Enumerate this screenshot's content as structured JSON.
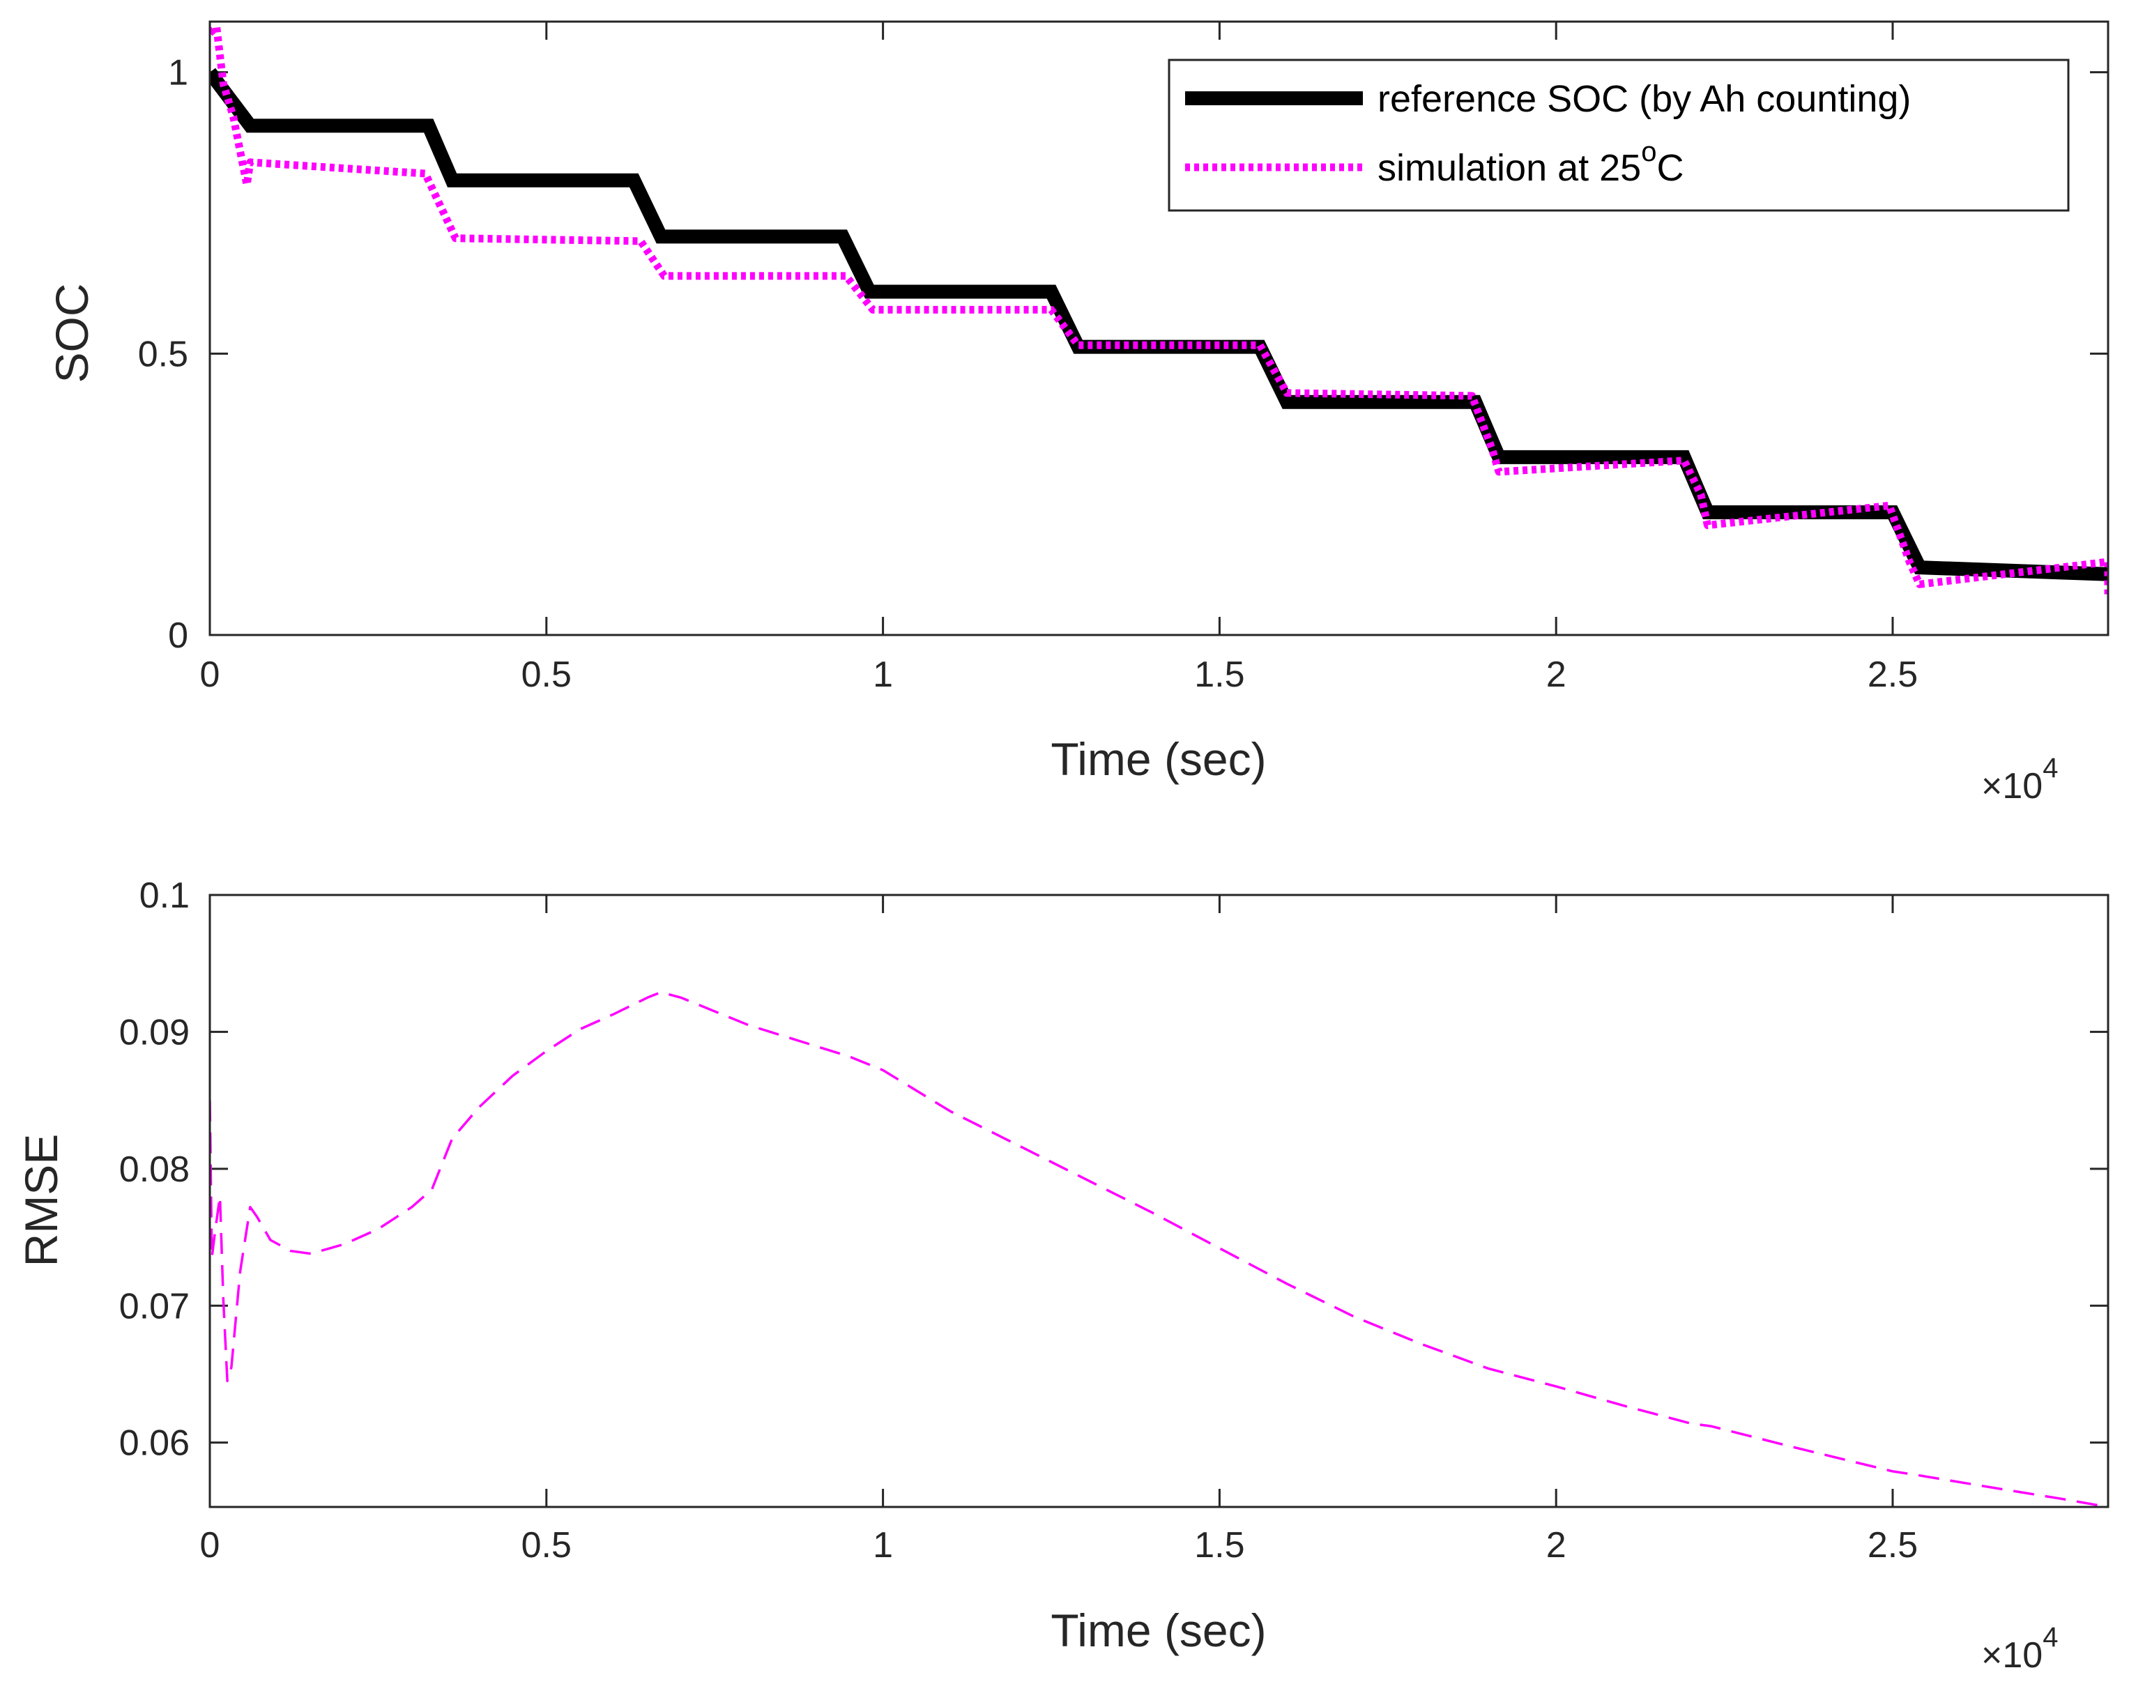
{
  "chart_data": [
    {
      "type": "line",
      "xlabel": "Time (sec)",
      "ylabel": "SOC",
      "xlim": [
        0,
        28200
      ],
      "ylim": [
        0,
        1.09
      ],
      "x_ticks": [
        0,
        5000,
        10000,
        15000,
        20000,
        25000
      ],
      "x_tick_labels": [
        "0",
        "0.5",
        "1",
        "1.5",
        "2",
        "2.5"
      ],
      "y_ticks": [
        0,
        0.5,
        1
      ],
      "y_tick_labels": [
        "0",
        "0.5",
        "1"
      ],
      "x_multiplier": {
        "base": "×10",
        "exponent": "4"
      },
      "legend": {
        "location": "top-right",
        "entries": [
          {
            "prefix": "reference SOC (by Ah counting)",
            "sup": "",
            "suffix": ""
          },
          {
            "prefix": "simulation at 25",
            "sup": "o",
            "suffix": "C"
          }
        ]
      },
      "series": [
        {
          "name": "reference SOC (by Ah counting)",
          "color": "#000000",
          "style": "solid",
          "x": [
            0,
            600,
            3250,
            3600,
            6300,
            6700,
            9400,
            9800,
            12500,
            12900,
            15600,
            16000,
            18800,
            19150,
            21900,
            22250,
            25000,
            25400,
            28200
          ],
          "y": [
            1.0,
            0.905,
            0.905,
            0.808,
            0.808,
            0.708,
            0.708,
            0.61,
            0.61,
            0.512,
            0.512,
            0.414,
            0.414,
            0.316,
            0.316,
            0.218,
            0.218,
            0.12,
            0.108
          ]
        },
        {
          "name": "simulation at 25oC",
          "color": "#ff00ff",
          "style": "dotted",
          "x": [
            0,
            100,
            200,
            350,
            550,
            600,
            3200,
            3650,
            6400,
            6750,
            9450,
            9850,
            12500,
            12900,
            15600,
            16000,
            18750,
            19050,
            19150,
            21900,
            22150,
            22250,
            24950,
            25250,
            25400,
            28200,
            28200
          ],
          "y": [
            1.07,
            1.08,
            0.98,
            0.92,
            0.8,
            0.84,
            0.82,
            0.705,
            0.7,
            0.638,
            0.638,
            0.578,
            0.578,
            0.515,
            0.515,
            0.43,
            0.425,
            0.33,
            0.29,
            0.31,
            0.25,
            0.195,
            0.23,
            0.13,
            0.09,
            0.13,
            0.07
          ]
        }
      ]
    },
    {
      "type": "line",
      "xlabel": "Time (sec)",
      "ylabel": "RMSE",
      "xlim": [
        0,
        28200
      ],
      "ylim": [
        0.0553,
        0.1
      ],
      "x_ticks": [
        0,
        5000,
        10000,
        15000,
        20000,
        25000
      ],
      "x_tick_labels": [
        "0",
        "0.5",
        "1",
        "1.5",
        "2",
        "2.5"
      ],
      "y_ticks": [
        0.06,
        0.07,
        0.08,
        0.09,
        0.1
      ],
      "y_tick_labels": [
        "0.06",
        "0.07",
        "0.08",
        "0.09",
        "0.1"
      ],
      "x_multiplier": {
        "base": "×10",
        "exponent": "4"
      },
      "series": [
        {
          "name": "RMSE",
          "color": "#ff00ff",
          "style": "dashed",
          "x": [
            0,
            30,
            80,
            150,
            200,
            260,
            320,
            450,
            600,
            700,
            900,
            1200,
            1500,
            2000,
            2500,
            3000,
            3300,
            3600,
            4000,
            4500,
            5000,
            5500,
            6000,
            6500,
            6700,
            7000,
            8000,
            9500,
            10000,
            11000,
            12500,
            14000,
            15000,
            16000,
            17000,
            18000,
            19000,
            20000,
            21000,
            22000,
            22300,
            23500,
            25000,
            25400,
            26500,
            27500,
            28200
          ],
          "y": [
            0.085,
            0.0735,
            0.0755,
            0.078,
            0.0705,
            0.0645,
            0.0655,
            0.0725,
            0.0772,
            0.0765,
            0.0748,
            0.074,
            0.0738,
            0.0745,
            0.0756,
            0.0772,
            0.0785,
            0.0822,
            0.0845,
            0.0868,
            0.0886,
            0.0902,
            0.0913,
            0.0925,
            0.0929,
            0.0925,
            0.0905,
            0.0882,
            0.0872,
            0.0842,
            0.0805,
            0.0768,
            0.0742,
            0.0716,
            0.0692,
            0.0672,
            0.0654,
            0.0641,
            0.0627,
            0.0614,
            0.0612,
            0.0597,
            0.0579,
            0.0576,
            0.0567,
            0.0559,
            0.0553
          ]
        }
      ]
    }
  ]
}
